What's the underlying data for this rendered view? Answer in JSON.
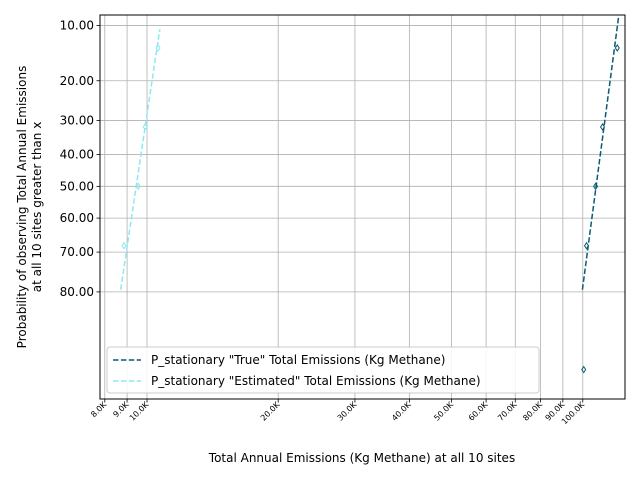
{
  "chart_data": {
    "type": "line",
    "title": "",
    "xlabel": "Total Annual Emissions (Kg Methane) at all 10 sites",
    "ylabel_lines": [
      "Probability of observing Total Annual Emissions",
      "at all 10 sites greater than x"
    ],
    "x_scale": "log",
    "xlim": [
      7800,
      125000
    ],
    "y_scale": "normal-probability",
    "ylim": [
      95.5,
      8.6
    ],
    "grid": true,
    "legend_position": "lower-left",
    "x_ticks": [
      {
        "value": 8000,
        "label": "8.0K"
      },
      {
        "value": 9000,
        "label": "9.0K"
      },
      {
        "value": 10000,
        "label": "10.0K"
      },
      {
        "value": 20000,
        "label": "20.0K"
      },
      {
        "value": 30000,
        "label": "30.0K"
      },
      {
        "value": 40000,
        "label": "40.0K"
      },
      {
        "value": 50000,
        "label": "50.0K"
      },
      {
        "value": 60000,
        "label": "60.0K"
      },
      {
        "value": 70000,
        "label": "70.0K"
      },
      {
        "value": 80000,
        "label": "80.0K"
      },
      {
        "value": 90000,
        "label": "90.0K"
      },
      {
        "value": 100000,
        "label": "100.0K"
      }
    ],
    "y_ticks": [
      {
        "value": 10,
        "label": "10.00"
      },
      {
        "value": 20,
        "label": "20.00"
      },
      {
        "value": 30,
        "label": "30.00"
      },
      {
        "value": 40,
        "label": "40.00"
      },
      {
        "value": 50,
        "label": "50.00"
      },
      {
        "value": 60,
        "label": "60.00"
      },
      {
        "value": 70,
        "label": "70.00"
      },
      {
        "value": 80,
        "label": "80.00"
      }
    ],
    "series": [
      {
        "name": "P_stationary \"True\" Total Emissions (Kg Methane)",
        "color": "#0b5a73",
        "line_style": "dashed",
        "points": [
          {
            "x": 120000,
            "y": 13.5
          },
          {
            "x": 111000,
            "y": 31.8
          },
          {
            "x": 107000,
            "y": 50.0
          },
          {
            "x": 102000,
            "y": 68.2
          },
          {
            "x": 100500,
            "y": 92.8
          }
        ],
        "fit_line": [
          {
            "x": 99800,
            "y": 79.5
          },
          {
            "x": 121000,
            "y": 8.6
          }
        ]
      },
      {
        "name": "P_stationary \"Estimated\" Total Emissions (Kg Methane)",
        "color": "#8fe7f3",
        "line_style": "dashed",
        "points": [
          {
            "x": 10600,
            "y": 13.5
          },
          {
            "x": 9900,
            "y": 31.8
          },
          {
            "x": 9550,
            "y": 50.0
          },
          {
            "x": 8850,
            "y": 68.2
          }
        ],
        "fit_line": [
          {
            "x": 8700,
            "y": 79.5
          },
          {
            "x": 10700,
            "y": 10.5
          }
        ]
      }
    ]
  }
}
